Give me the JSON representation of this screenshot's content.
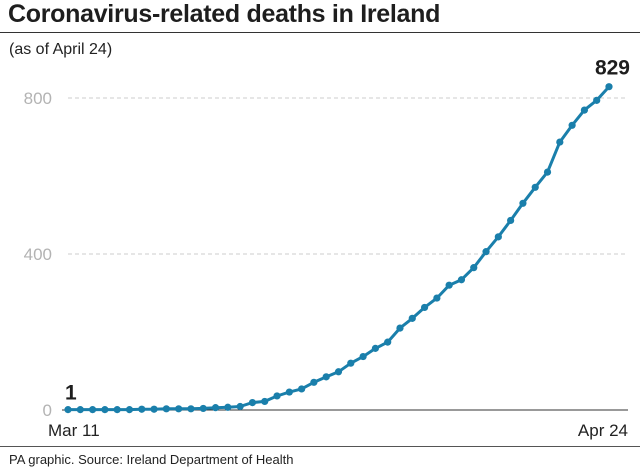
{
  "header": {
    "title": "Coronavirus-related deaths in Ireland",
    "subtitle": "(as of April 24)"
  },
  "footer": {
    "source": "PA graphic. Source: Ireland Department of Health"
  },
  "colors": {
    "series": "#1a7fab",
    "grid": "#cccccc",
    "axis": "#333333"
  },
  "chart_data": {
    "type": "line",
    "title": "Coronavirus-related deaths in Ireland",
    "subtitle": "(as of April 24)",
    "xlabel": "",
    "ylabel": "",
    "x_start_label": "Mar 11",
    "x_end_label": "Apr 24",
    "x": [
      "Mar 11",
      "Mar 12",
      "Mar 13",
      "Mar 14",
      "Mar 15",
      "Mar 16",
      "Mar 17",
      "Mar 18",
      "Mar 19",
      "Mar 20",
      "Mar 21",
      "Mar 22",
      "Mar 23",
      "Mar 24",
      "Mar 25",
      "Mar 26",
      "Mar 27",
      "Mar 28",
      "Mar 29",
      "Mar 30",
      "Mar 31",
      "Apr 1",
      "Apr 2",
      "Apr 3",
      "Apr 4",
      "Apr 5",
      "Apr 6",
      "Apr 7",
      "Apr 8",
      "Apr 9",
      "Apr 10",
      "Apr 11",
      "Apr 12",
      "Apr 13",
      "Apr 14",
      "Apr 15",
      "Apr 16",
      "Apr 17",
      "Apr 18",
      "Apr 19",
      "Apr 20",
      "Apr 21",
      "Apr 22",
      "Apr 23",
      "Apr 24"
    ],
    "series": [
      {
        "values": [
          1,
          1,
          1,
          1,
          1,
          1,
          2,
          2,
          3,
          3,
          3,
          4,
          6,
          7,
          9,
          19,
          22,
          36,
          46,
          54,
          71,
          85,
          98,
          120,
          137,
          158,
          174,
          210,
          235,
          263,
          287,
          320,
          334,
          365,
          406,
          444,
          486,
          530,
          571,
          610,
          687,
          730,
          769,
          794,
          829
        ]
      }
    ],
    "yticks": [
      0,
      400,
      800
    ],
    "ylim": [
      0,
      829
    ],
    "grid": "horizontal dashed",
    "annotations": [
      {
        "label": "1",
        "at": "start"
      },
      {
        "label": "829",
        "at": "end"
      }
    ]
  }
}
